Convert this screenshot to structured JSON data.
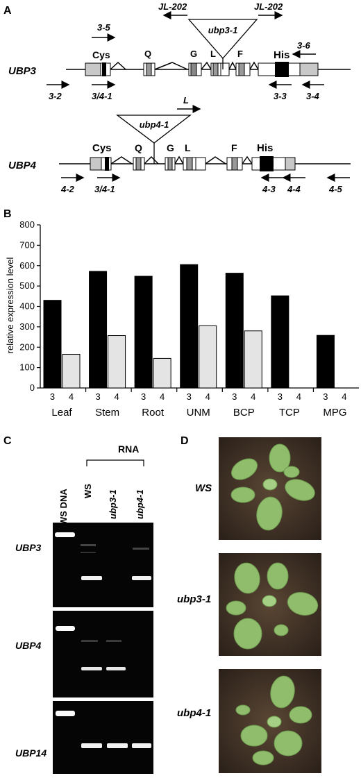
{
  "panel_letters": {
    "a": "A",
    "b": "B",
    "c": "C",
    "d": "D"
  },
  "panel_a": {
    "ubp3": {
      "gene": "UBP3",
      "domains": {
        "cys": "Cys",
        "q": "Q",
        "g": "G",
        "l": "L",
        "f": "F",
        "his": "His"
      },
      "insertion": "ubp3-1",
      "primers": {
        "p35": "3-5",
        "p32": "3-2",
        "p341": "3/4-1",
        "p36": "3-6",
        "p33": "3-3",
        "p34": "3-4",
        "jl1": "JL-202",
        "jl2": "JL-202"
      }
    },
    "ubp4": {
      "gene": "UBP4",
      "domains": {
        "cys": "Cys",
        "q": "Q",
        "g": "G",
        "l": "L",
        "f": "F",
        "his": "His"
      },
      "insertion": "ubp4-1",
      "primers": {
        "l": "L",
        "p42": "4-2",
        "p341": "3/4-1",
        "p43": "4-3",
        "p44": "4-4",
        "p45": "4-5"
      }
    }
  },
  "chart_data": {
    "type": "bar",
    "ylabel": "relative expression level",
    "ylim": [
      0,
      800
    ],
    "yticks": [
      0,
      100,
      200,
      300,
      400,
      500,
      600,
      700,
      800
    ],
    "groups": [
      "Leaf",
      "Stem",
      "Root",
      "UNM",
      "BCP",
      "TCP",
      "MPG"
    ],
    "bar_labels": [
      "3",
      "4"
    ],
    "series": [
      {
        "name": "3",
        "color": "#000000",
        "values": [
          430,
          572,
          548,
          605,
          563,
          452,
          258
        ]
      },
      {
        "name": "4",
        "color": "#e4e4e4",
        "values": [
          165,
          257,
          145,
          305,
          280,
          0,
          0
        ]
      }
    ]
  },
  "panel_c": {
    "rna_label": "RNA",
    "lanes": [
      "WS DNA",
      "WS",
      "ubp3-1",
      "ubp4-1"
    ],
    "rows": [
      "UBP3",
      "UBP4",
      "UBP14"
    ]
  },
  "panel_d": {
    "rows": [
      "WS",
      "ubp3-1",
      "ubp4-1"
    ]
  }
}
